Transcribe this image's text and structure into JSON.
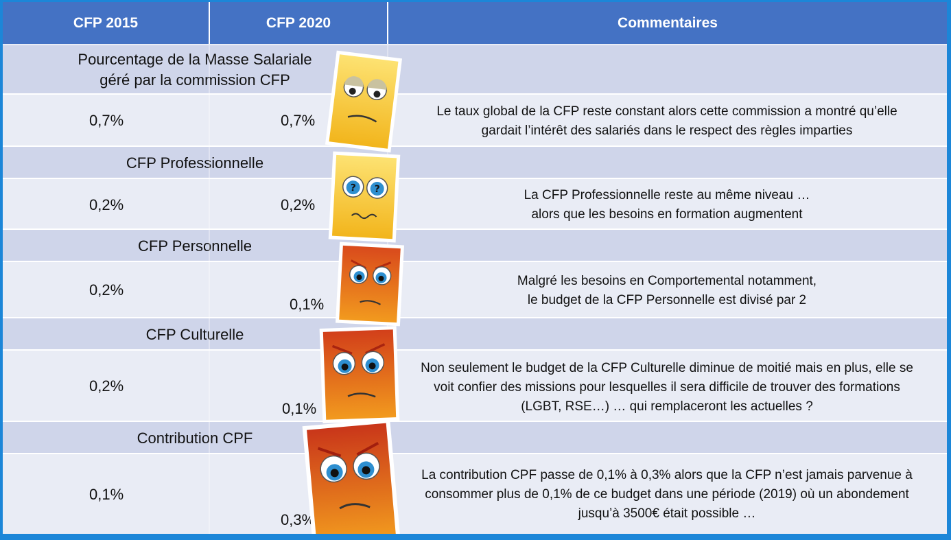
{
  "header": {
    "col1": "CFP 2015",
    "col2": "CFP 2020",
    "col3": "Commentaires"
  },
  "rows": [
    {
      "label_line1": "Pourcentage de la Masse Salariale",
      "label_line2": "géré par la commission CFP",
      "v2015": "0,7%",
      "v2020": "0,7%",
      "comment_line1": "Le taux global de la CFP reste constant alors cette commission a montré qu’elle",
      "comment_line2": "gardait l’intérêt des salariés dans le respect des règles imparties",
      "mood": "sad-yellow-face-icon"
    },
    {
      "label_line1": "CFP Professionnelle",
      "v2015": "0,2%",
      "v2020": "0,2%",
      "comment_line1": "La CFP Professionnelle  reste au même niveau …",
      "comment_line2": "alors que les besoins en formation augmentent",
      "mood": "confused-yellow-face-icon"
    },
    {
      "label_line1": "CFP Personnelle",
      "v2015": "0,2%",
      "v2020": "0,1%",
      "comment_line1": "Malgré les besoins en Comportemental  notamment,",
      "comment_line2": "le budget de la CFP Personnelle est divisé par 2",
      "mood": "angry-orange-face-icon"
    },
    {
      "label_line1": "CFP Culturelle",
      "v2015": "0,2%",
      "v2020": "0,1%",
      "comment_line1": "Non seulement  le budget de la CFP Culturelle diminue de moitié mais en plus, elle se",
      "comment_line2": "voit confier des missions pour lesquelles il sera difficile de trouver des formations",
      "comment_line3": "(LGBT, RSE…) … qui remplaceront les actuelles  ?",
      "mood": "angry-orange-face-icon"
    },
    {
      "label_line1": "Contribution CPF",
      "v2015": "0,1%",
      "v2020": "0,3%",
      "comment_line1": "La contribution CPF passe de 0,1% à 0,3% alors que la CFP n’est jamais parvenue à",
      "comment_line2": "consommer  plus de 0,1% de ce budget dans une période (2019) où un abondement",
      "comment_line3": "jusqu’à 3500€ était possible  …",
      "mood": "angry-red-face-icon"
    }
  ],
  "colors": {
    "header_bg": "#4472c4",
    "label_band": "#cfd5ea",
    "value_band": "#e9ecf5",
    "frame": "#1c86d8"
  }
}
